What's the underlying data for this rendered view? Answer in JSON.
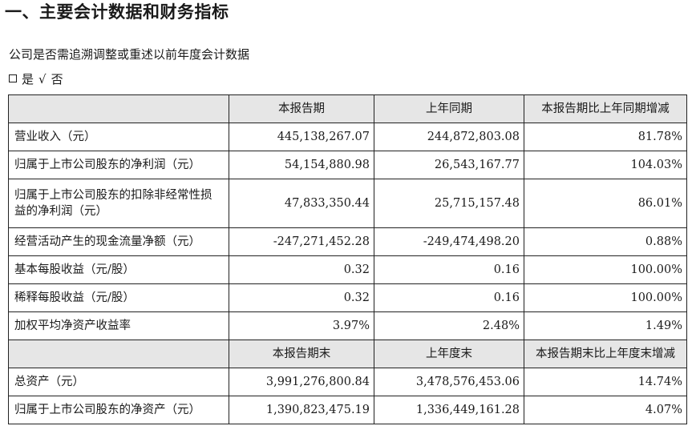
{
  "title": "一、主要会计数据和财务指标",
  "restate": {
    "question": "公司是否需追溯调整或重述以前年度会计数据",
    "yes_label": "是",
    "check_mark": "√",
    "no_label": "否"
  },
  "table": {
    "header1": [
      "",
      "本报告期",
      "上年同期",
      "本报告期比上年同期增减"
    ],
    "rows1": [
      {
        "label": "营业收入（元）",
        "current": "445,138,267.07",
        "prior": "244,872,803.08",
        "change": "81.78%"
      },
      {
        "label": "归属于上市公司股东的净利润（元）",
        "current": "54,154,880.98",
        "prior": "26,543,167.77",
        "change": "104.03%"
      },
      {
        "label": "归属于上市公司股东的扣除非经常性损益的净利润（元）",
        "current": "47,833,350.44",
        "prior": "25,715,157.48",
        "change": "86.01%"
      },
      {
        "label": "经营活动产生的现金流量净额（元）",
        "current": "-247,271,452.28",
        "prior": "-249,474,498.20",
        "change": "0.88%"
      },
      {
        "label": "基本每股收益（元/股）",
        "current": "0.32",
        "prior": "0.16",
        "change": "100.00%"
      },
      {
        "label": "稀释每股收益（元/股）",
        "current": "0.32",
        "prior": "0.16",
        "change": "100.00%"
      },
      {
        "label": "加权平均净资产收益率",
        "current": "3.97%",
        "prior": "2.48%",
        "change": "1.49%"
      }
    ],
    "header2": [
      "",
      "本报告期末",
      "上年度末",
      "本报告期末比上年度末增减"
    ],
    "rows2": [
      {
        "label": "总资产（元）",
        "current": "3,991,276,800.84",
        "prior": "3,478,576,453.06",
        "change": "14.74%"
      },
      {
        "label": "归属于上市公司股东的净资产（元）",
        "current": "1,390,823,475.19",
        "prior": "1,336,449,161.28",
        "change": "4.07%"
      }
    ]
  }
}
